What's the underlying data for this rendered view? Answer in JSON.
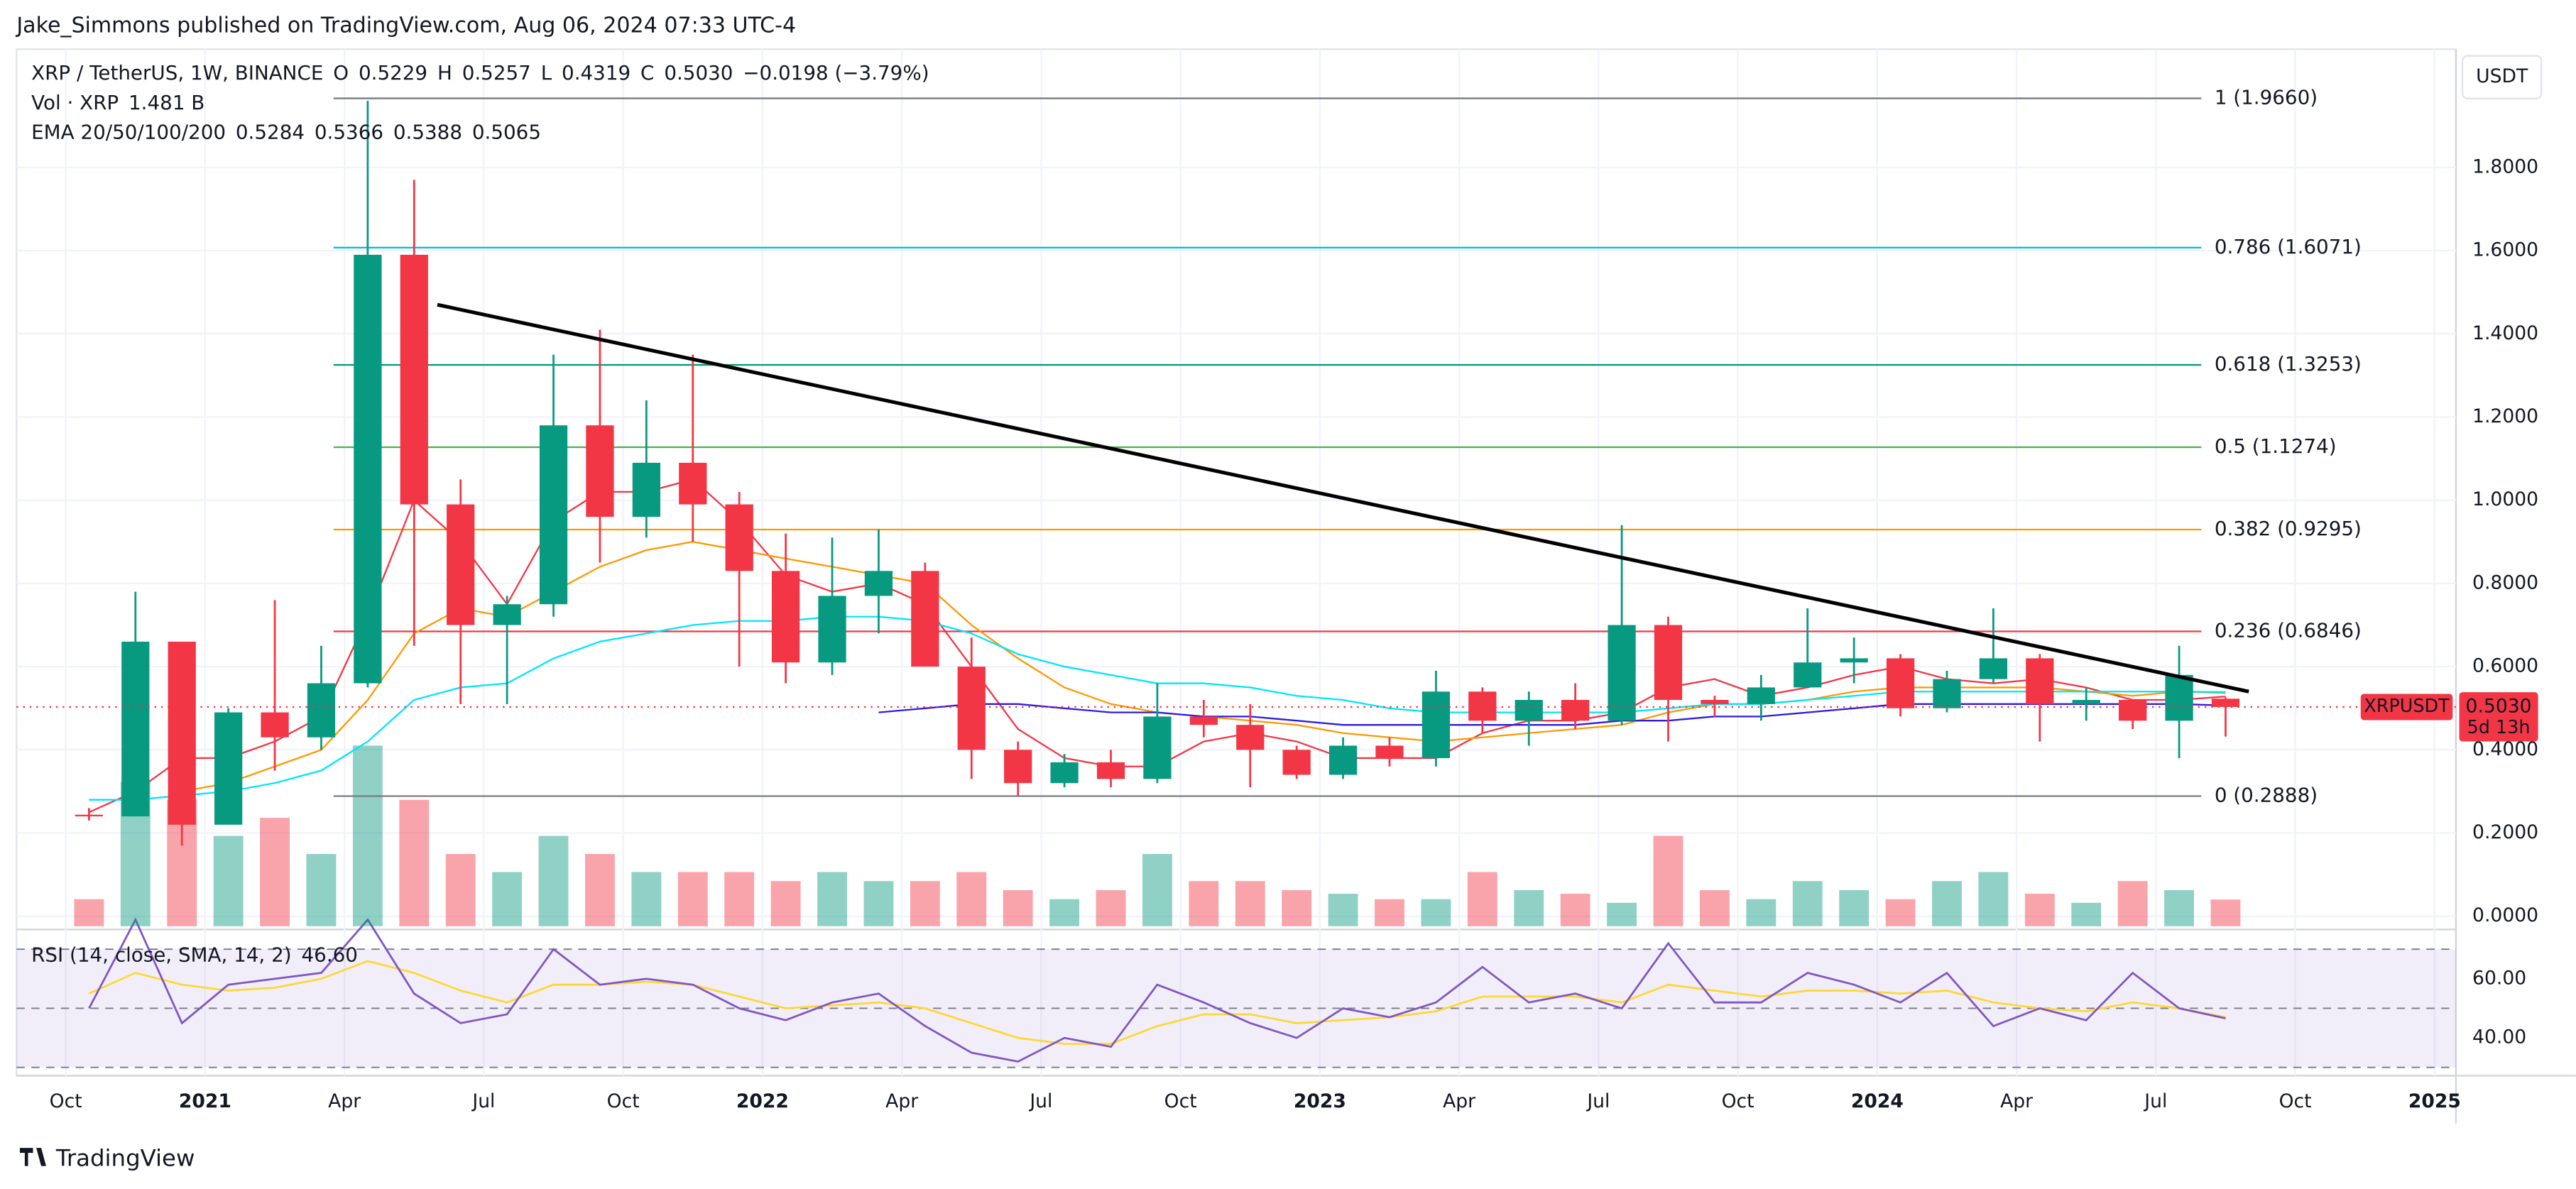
{
  "header": {
    "publisher": "Jake_Simmons published on TradingView.com, Aug 06, 2024 07:33 UTC-4"
  },
  "footer": {
    "brand": "TradingView"
  },
  "chart_data": {
    "type": "candlestick",
    "symbol": "XRP / TetherUS, 1W, BINANCE",
    "currency": "USDT",
    "up_color": "#089981",
    "down_color": "#f23645",
    "ohlc_legend": [
      {
        "label": "O",
        "value": 0.5229
      },
      {
        "label": "H",
        "value": 0.5257
      },
      {
        "label": "L",
        "value": 0.4319
      },
      {
        "label": "C",
        "value": 0.503
      }
    ],
    "ohlc_legend_labels": [
      "0.5229",
      "0.5257",
      "0.4319",
      "0.5030"
    ],
    "change_label": "−0.0198 (−3.79%)",
    "x": [
      "2020-10",
      "2020-11",
      "2020-12",
      "2021-01",
      "2021-02",
      "2021-03",
      "2021-04",
      "2021-05",
      "2021-06",
      "2021-07",
      "2021-08",
      "2021-09",
      "2021-10",
      "2021-11",
      "2021-12",
      "2022-01",
      "2022-02",
      "2022-03",
      "2022-04",
      "2022-05",
      "2022-06",
      "2022-07",
      "2022-08",
      "2022-09",
      "2022-10",
      "2022-11",
      "2022-12",
      "2023-01",
      "2023-02",
      "2023-03",
      "2023-04",
      "2023-05",
      "2023-06",
      "2023-07",
      "2023-08",
      "2023-09",
      "2023-10",
      "2023-11",
      "2023-12",
      "2024-01",
      "2024-02",
      "2024-03",
      "2024-04",
      "2024-05",
      "2024-06",
      "2024-07",
      "2024-08"
    ],
    "open": [
      0.244,
      0.24,
      0.66,
      0.22,
      0.49,
      0.43,
      0.56,
      1.59,
      0.99,
      0.7,
      0.75,
      1.18,
      0.96,
      1.09,
      0.99,
      0.83,
      0.61,
      0.77,
      0.83,
      0.6,
      0.4,
      0.32,
      0.37,
      0.33,
      0.48,
      0.46,
      0.4,
      0.34,
      0.41,
      0.38,
      0.54,
      0.47,
      0.52,
      0.47,
      0.7,
      0.52,
      0.51,
      0.55,
      0.61,
      0.62,
      0.5,
      0.57,
      0.62,
      0.51,
      0.52,
      0.47,
      0.5229
    ],
    "high": [
      0.26,
      0.78,
      0.66,
      0.5,
      0.76,
      0.65,
      1.96,
      1.77,
      1.05,
      0.77,
      1.35,
      1.41,
      1.24,
      1.35,
      1.02,
      0.92,
      0.91,
      0.93,
      0.85,
      0.67,
      0.42,
      0.39,
      0.4,
      0.56,
      0.52,
      0.51,
      0.41,
      0.43,
      0.43,
      0.59,
      0.55,
      0.54,
      0.56,
      0.94,
      0.72,
      0.53,
      0.58,
      0.74,
      0.67,
      0.63,
      0.59,
      0.74,
      0.63,
      0.55,
      0.52,
      0.65,
      0.5257
    ],
    "low": [
      0.23,
      0.24,
      0.17,
      0.22,
      0.35,
      0.4,
      0.55,
      0.65,
      0.51,
      0.51,
      0.72,
      0.85,
      0.91,
      0.9,
      0.6,
      0.56,
      0.58,
      0.68,
      0.6,
      0.33,
      0.29,
      0.31,
      0.31,
      0.32,
      0.43,
      0.31,
      0.33,
      0.33,
      0.36,
      0.36,
      0.44,
      0.41,
      0.45,
      0.46,
      0.42,
      0.48,
      0.47,
      0.55,
      0.56,
      0.48,
      0.49,
      0.56,
      0.42,
      0.47,
      0.45,
      0.38,
      0.4319
    ],
    "close": [
      0.24,
      0.66,
      0.22,
      0.49,
      0.43,
      0.56,
      1.59,
      0.99,
      0.7,
      0.75,
      1.18,
      0.96,
      1.09,
      0.99,
      0.83,
      0.61,
      0.77,
      0.83,
      0.6,
      0.4,
      0.32,
      0.37,
      0.33,
      0.48,
      0.46,
      0.4,
      0.34,
      0.41,
      0.38,
      0.54,
      0.47,
      0.52,
      0.47,
      0.7,
      0.52,
      0.51,
      0.55,
      0.61,
      0.62,
      0.5,
      0.57,
      0.62,
      0.51,
      0.52,
      0.47,
      0.58,
      0.503
    ],
    "volume": {
      "name": "Vol · XRP",
      "last_label": "1.481 B",
      "values": [
        1.5,
        8,
        7,
        5,
        6,
        4,
        10,
        7,
        4,
        3,
        5,
        4,
        3,
        3,
        3,
        2.5,
        3,
        2.5,
        2.5,
        3,
        2,
        1.5,
        2,
        4,
        2.5,
        2.5,
        2,
        1.8,
        1.5,
        1.5,
        3,
        2,
        1.8,
        1.3,
        5,
        2,
        1.5,
        2.5,
        2,
        1.5,
        2.5,
        3,
        1.8,
        1.3,
        2.5,
        2,
        1.481
      ]
    },
    "ema": {
      "name": "EMA 20/50/100/200",
      "series": [
        {
          "color": "#f23645",
          "last": 0.5284,
          "values": [
            0.25,
            0.3,
            0.38,
            0.38,
            0.42,
            0.48,
            0.72,
            1.0,
            0.9,
            0.75,
            0.95,
            1.02,
            1.02,
            1.05,
            0.95,
            0.82,
            0.78,
            0.8,
            0.75,
            0.6,
            0.45,
            0.38,
            0.36,
            0.36,
            0.42,
            0.44,
            0.42,
            0.38,
            0.38,
            0.38,
            0.44,
            0.47,
            0.47,
            0.49,
            0.55,
            0.57,
            0.53,
            0.55,
            0.58,
            0.6,
            0.57,
            0.56,
            0.57,
            0.55,
            0.52,
            0.52,
            0.5284
          ]
        },
        {
          "color": "#ff9800",
          "last": 0.5366,
          "values": [
            null,
            null,
            0.3,
            0.32,
            0.36,
            0.4,
            0.52,
            0.68,
            0.74,
            0.72,
            0.78,
            0.84,
            0.88,
            0.9,
            0.88,
            0.86,
            0.84,
            0.82,
            0.8,
            0.7,
            0.62,
            0.55,
            0.51,
            0.49,
            0.48,
            0.47,
            0.46,
            0.44,
            0.43,
            0.42,
            0.43,
            0.44,
            0.45,
            0.46,
            0.49,
            0.51,
            0.51,
            0.52,
            0.54,
            0.55,
            0.55,
            0.55,
            0.55,
            0.54,
            0.53,
            0.54,
            0.5366
          ]
        },
        {
          "color": "#00e5ff",
          "last": 0.5388,
          "values": [
            0.28,
            0.28,
            0.29,
            0.3,
            0.32,
            0.35,
            0.42,
            0.52,
            0.55,
            0.56,
            0.62,
            0.66,
            0.68,
            0.7,
            0.71,
            0.71,
            0.72,
            0.72,
            0.71,
            0.68,
            0.63,
            0.6,
            0.58,
            0.56,
            0.56,
            0.55,
            0.53,
            0.52,
            0.5,
            0.49,
            0.49,
            0.49,
            0.49,
            0.49,
            0.5,
            0.51,
            0.51,
            0.52,
            0.53,
            0.54,
            0.54,
            0.54,
            0.54,
            0.54,
            0.54,
            0.54,
            0.5388
          ]
        },
        {
          "color": "#311bde",
          "last": 0.5065,
          "values": [
            null,
            null,
            null,
            null,
            null,
            null,
            null,
            null,
            null,
            null,
            null,
            null,
            null,
            null,
            null,
            null,
            null,
            0.49,
            0.5,
            0.51,
            0.51,
            0.5,
            0.49,
            0.49,
            0.48,
            0.48,
            0.47,
            0.46,
            0.46,
            0.46,
            0.46,
            0.46,
            0.46,
            0.47,
            0.47,
            0.48,
            0.48,
            0.49,
            0.5,
            0.51,
            0.51,
            0.51,
            0.51,
            0.51,
            0.51,
            0.51,
            0.5065
          ]
        }
      ]
    },
    "fibonacci": [
      {
        "label": "1 (1.9660)",
        "value": 1.966,
        "color": "#787b86"
      },
      {
        "label": "0.786 (1.6071)",
        "value": 1.6071,
        "color": "#00bcd4"
      },
      {
        "label": "0.618 (1.3253)",
        "value": 1.3253,
        "color": "#089981"
      },
      {
        "label": "0.5 (1.1274)",
        "value": 1.1274,
        "color": "#4caf50"
      },
      {
        "label": "0.382 (0.9295)",
        "value": 0.9295,
        "color": "#ff9800"
      },
      {
        "label": "0.236 (0.6846)",
        "value": 0.6846,
        "color": "#f23645"
      },
      {
        "label": "0 (0.2888)",
        "value": 0.2888,
        "color": "#787b86"
      }
    ],
    "trendline": {
      "x": [
        "2021-06",
        "2024-09"
      ],
      "values": [
        1.47,
        0.54
      ],
      "color": "#000000"
    },
    "last_price": {
      "symbol": "XRPUSDT",
      "value": 0.503,
      "label": "0.5030",
      "countdown": "5d 13h"
    },
    "ylim": [
      -0.028,
      2.084
    ],
    "yticks": [
      {
        "value": 0,
        "label": "0.0000"
      },
      {
        "value": 0.2,
        "label": "0.2000"
      },
      {
        "value": 0.4,
        "label": "0.4000"
      },
      {
        "value": 0.6,
        "label": "0.6000"
      },
      {
        "value": 0.8,
        "label": "0.8000"
      },
      {
        "value": 1,
        "label": "1.0000"
      },
      {
        "value": 1.2,
        "label": "1.2000"
      },
      {
        "value": 1.4,
        "label": "1.4000"
      },
      {
        "value": 1.6,
        "label": "1.6000"
      },
      {
        "value": 1.8,
        "label": "1.8000"
      }
    ],
    "xlim": [
      "2020-09",
      "2025-01"
    ],
    "xticks": [
      {
        "value": "2020-10",
        "label": "Oct"
      },
      {
        "value": "2021-01",
        "label": "2021"
      },
      {
        "value": "2021-04",
        "label": "Apr"
      },
      {
        "value": "2021-07",
        "label": "Jul"
      },
      {
        "value": "2021-10",
        "label": "Oct"
      },
      {
        "value": "2022-01",
        "label": "2022"
      },
      {
        "value": "2022-04",
        "label": "Apr"
      },
      {
        "value": "2022-07",
        "label": "Jul"
      },
      {
        "value": "2022-10",
        "label": "Oct"
      },
      {
        "value": "2023-01",
        "label": "2023"
      },
      {
        "value": "2023-04",
        "label": "Apr"
      },
      {
        "value": "2023-07",
        "label": "Jul"
      },
      {
        "value": "2023-10",
        "label": "Oct"
      },
      {
        "value": "2024-01",
        "label": "2024"
      },
      {
        "value": "2024-04",
        "label": "Apr"
      },
      {
        "value": "2024-07",
        "label": "Jul"
      },
      {
        "value": "2024-10",
        "label": "Oct"
      },
      {
        "value": "2025-01",
        "label": "2025"
      }
    ],
    "grid": true,
    "rsi": {
      "title": "RSI (14, close, SMA, 14, 2)",
      "last_label": "46.60",
      "color": "#7e57c2",
      "sma_color": "#fdd835",
      "values": [
        50,
        80,
        45,
        58,
        60,
        62,
        80,
        55,
        45,
        48,
        70,
        58,
        60,
        58,
        50,
        46,
        52,
        55,
        44,
        35,
        32,
        40,
        37,
        58,
        52,
        45,
        40,
        50,
        47,
        52,
        64,
        52,
        55,
        50,
        72,
        52,
        52,
        62,
        58,
        52,
        62,
        44,
        50,
        46,
        62,
        50,
        46.6
      ],
      "sma": [
        55,
        62,
        58,
        56,
        57,
        60,
        66,
        62,
        56,
        52,
        58,
        58,
        59,
        58,
        54,
        50,
        51,
        52,
        50,
        45,
        40,
        38,
        38,
        44,
        48,
        48,
        45,
        46,
        47,
        49,
        54,
        54,
        54,
        52,
        58,
        56,
        54,
        56,
        56,
        55,
        56,
        52,
        50,
        49,
        52,
        50,
        47
      ],
      "ylim": [
        27.2,
        76.1
      ],
      "yticks": [
        {
          "value": 40,
          "label": "40.00"
        },
        {
          "value": 60,
          "label": "60.00"
        }
      ],
      "bands": [
        30,
        50,
        70
      ]
    }
  }
}
